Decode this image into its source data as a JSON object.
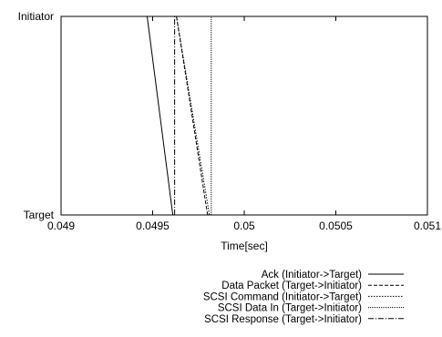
{
  "chart_data": {
    "type": "line",
    "title": "",
    "xlabel": "Time[sec]",
    "ylabel": "",
    "xlim": [
      0.049,
      0.051
    ],
    "x_ticks": [
      {
        "value": 0.049,
        "label": "0.049"
      },
      {
        "value": 0.0495,
        "label": "0.0495"
      },
      {
        "value": 0.05,
        "label": "0.05"
      },
      {
        "value": 0.0505,
        "label": "0.0505"
      },
      {
        "value": 0.051,
        "label": "0.051"
      }
    ],
    "y_categories": [
      {
        "value": 1,
        "label": "Initiator"
      },
      {
        "value": 0,
        "label": "Target"
      }
    ],
    "grid": false,
    "legend_position": "bottom-right",
    "series": [
      {
        "name": "Ack (Initiator->Target)",
        "style": "solid",
        "color": "#000000",
        "segments": [
          [
            [
              0.04947,
              1
            ],
            [
              0.04961,
              0
            ]
          ]
        ]
      },
      {
        "name": "Data Packet (Target->Initiator)",
        "style": "dashed",
        "color": "#000000",
        "segments": [
          [
            [
              0.0498,
              0
            ],
            [
              0.04963,
              1
            ]
          ]
        ]
      },
      {
        "name": "SCSI Command (Initiator->Target)",
        "style": "dotted",
        "color": "#000000",
        "segments": [
          [
            [
              0.04963,
              1
            ],
            [
              0.04981,
              0
            ]
          ]
        ]
      },
      {
        "name": "SCSI Data In (Target->Initiator)",
        "style": "fine-dotted",
        "color": "#000000",
        "segments": [
          [
            [
              0.04982,
              0
            ],
            [
              0.04982,
              1
            ]
          ]
        ]
      },
      {
        "name": "SCSI Response (Target->Initiator)",
        "style": "dashdot",
        "color": "#000000",
        "segments": [
          [
            [
              0.04962,
              0
            ],
            [
              0.04962,
              1
            ]
          ]
        ]
      }
    ]
  }
}
